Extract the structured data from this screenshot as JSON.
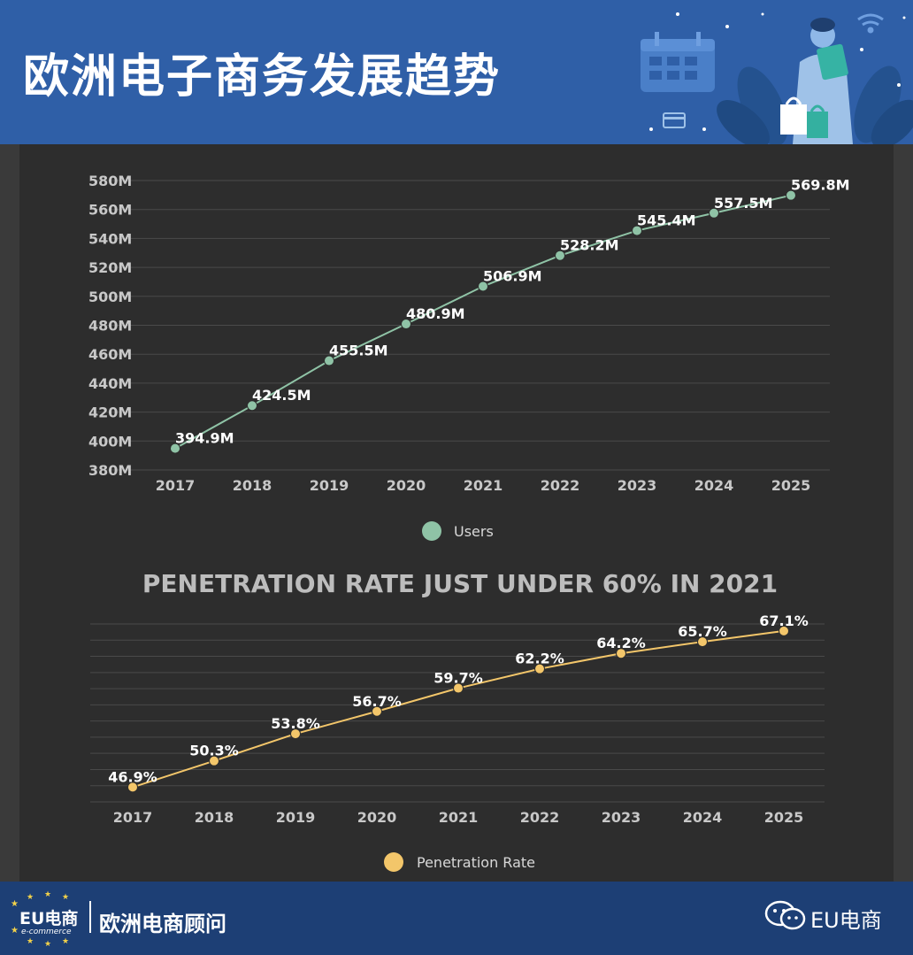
{
  "header": {
    "title": "欧洲电子商务发展趋势"
  },
  "footer": {
    "logo_text": "EU电商",
    "logo_subtext": "e-commerce",
    "brand_name": "欧洲电商顾问",
    "wechat_label": "EU电商"
  },
  "colors": {
    "header_bg": "#2f5fa7",
    "footer_bg": "#1d3f75",
    "panel_bg": "#2d2d2d",
    "users_series": "#8fc3a6",
    "penetration_series": "#f3c66a"
  },
  "icons": [
    "calendar-icon",
    "shopping-bag-icon",
    "credit-card-icon",
    "wifi-icon",
    "wechat-icon",
    "eu-stars-icon"
  ],
  "chart_data": [
    {
      "type": "line",
      "title": "",
      "x": [
        "2017",
        "2018",
        "2019",
        "2020",
        "2021",
        "2022",
        "2023",
        "2024",
        "2025"
      ],
      "yticks": [
        "380M",
        "400M",
        "420M",
        "440M",
        "460M",
        "480M",
        "500M",
        "520M",
        "540M",
        "560M",
        "580M"
      ],
      "ylim": [
        380,
        580
      ],
      "grid": true,
      "legend": "bottom-center",
      "series": [
        {
          "name": "Users",
          "values": [
            394.9,
            424.5,
            455.5,
            480.9,
            506.9,
            528.2,
            545.4,
            557.5,
            569.8
          ],
          "labels": [
            "394.9M",
            "424.5M",
            "455.5M",
            "480.9M",
            "506.9M",
            "528.2M",
            "545.4M",
            "557.5M",
            "569.8M"
          ]
        }
      ]
    },
    {
      "type": "line",
      "title": "PENETRATION RATE JUST UNDER 60% IN 2021",
      "x": [
        "2017",
        "2018",
        "2019",
        "2020",
        "2021",
        "2022",
        "2023",
        "2024",
        "2025"
      ],
      "ylim": [
        45,
        68
      ],
      "grid": true,
      "legend": "bottom-center",
      "series": [
        {
          "name": "Penetration Rate",
          "values": [
            46.9,
            50.3,
            53.8,
            56.7,
            59.7,
            62.2,
            64.2,
            65.7,
            67.1
          ],
          "labels": [
            "46.9%",
            "50.3%",
            "53.8%",
            "56.7%",
            "59.7%",
            "62.2%",
            "64.2%",
            "65.7%",
            "67.1%"
          ]
        }
      ]
    }
  ]
}
